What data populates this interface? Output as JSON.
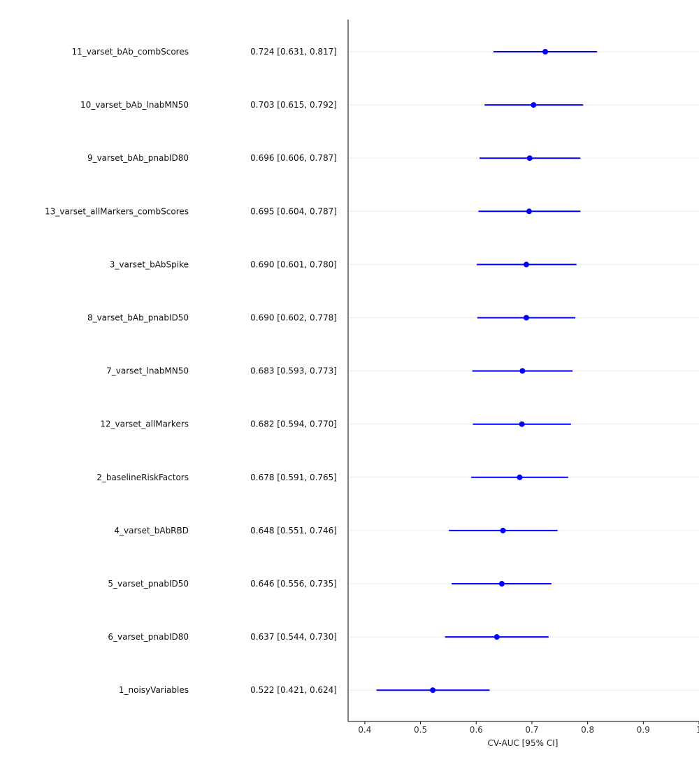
{
  "chart_data": {
    "type": "forest",
    "title": "",
    "xlabel": "CV-AUC [95% CI]",
    "ylabel": "",
    "xlim": [
      0.37,
      1.0
    ],
    "x_ticks": [
      0.4,
      0.5,
      0.6,
      0.7,
      0.8,
      0.9,
      1.0
    ],
    "x_tick_labels": [
      "0.4",
      "0.5",
      "0.6",
      "0.7",
      "0.8",
      "0.9",
      "1"
    ],
    "grid": "horizontal gridlines only",
    "point_color": "#0000ff",
    "gridline_color": "#ebebeb",
    "axis_color": "#000000",
    "rows": [
      {
        "label": "11_varset_bAb_combScores",
        "ci_text": "0.724 [0.631, 0.817]",
        "auc": 0.724,
        "lower": 0.631,
        "upper": 0.817
      },
      {
        "label": "10_varset_bAb_lnabMN50",
        "ci_text": "0.703 [0.615, 0.792]",
        "auc": 0.703,
        "lower": 0.615,
        "upper": 0.792
      },
      {
        "label": "9_varset_bAb_pnabID80",
        "ci_text": "0.696 [0.606, 0.787]",
        "auc": 0.696,
        "lower": 0.606,
        "upper": 0.787
      },
      {
        "label": "13_varset_allMarkers_combScores",
        "ci_text": "0.695 [0.604, 0.787]",
        "auc": 0.695,
        "lower": 0.604,
        "upper": 0.787
      },
      {
        "label": "3_varset_bAbSpike",
        "ci_text": "0.690 [0.601, 0.780]",
        "auc": 0.69,
        "lower": 0.601,
        "upper": 0.78
      },
      {
        "label": "8_varset_bAb_pnabID50",
        "ci_text": "0.690 [0.602, 0.778]",
        "auc": 0.69,
        "lower": 0.602,
        "upper": 0.778
      },
      {
        "label": "7_varset_lnabMN50",
        "ci_text": "0.683 [0.593, 0.773]",
        "auc": 0.683,
        "lower": 0.593,
        "upper": 0.773
      },
      {
        "label": "12_varset_allMarkers",
        "ci_text": "0.682 [0.594, 0.770]",
        "auc": 0.682,
        "lower": 0.594,
        "upper": 0.77
      },
      {
        "label": "2_baselineRiskFactors",
        "ci_text": "0.678 [0.591, 0.765]",
        "auc": 0.678,
        "lower": 0.591,
        "upper": 0.765
      },
      {
        "label": "4_varset_bAbRBD",
        "ci_text": "0.648 [0.551, 0.746]",
        "auc": 0.648,
        "lower": 0.551,
        "upper": 0.746
      },
      {
        "label": "5_varset_pnabID50",
        "ci_text": "0.646 [0.556, 0.735]",
        "auc": 0.646,
        "lower": 0.556,
        "upper": 0.735
      },
      {
        "label": "6_varset_pnabID80",
        "ci_text": "0.637 [0.544, 0.730]",
        "auc": 0.637,
        "lower": 0.544,
        "upper": 0.73
      },
      {
        "label": "1_noisyVariables",
        "ci_text": "0.522 [0.421, 0.624]",
        "auc": 0.522,
        "lower": 0.421,
        "upper": 0.624
      }
    ]
  }
}
